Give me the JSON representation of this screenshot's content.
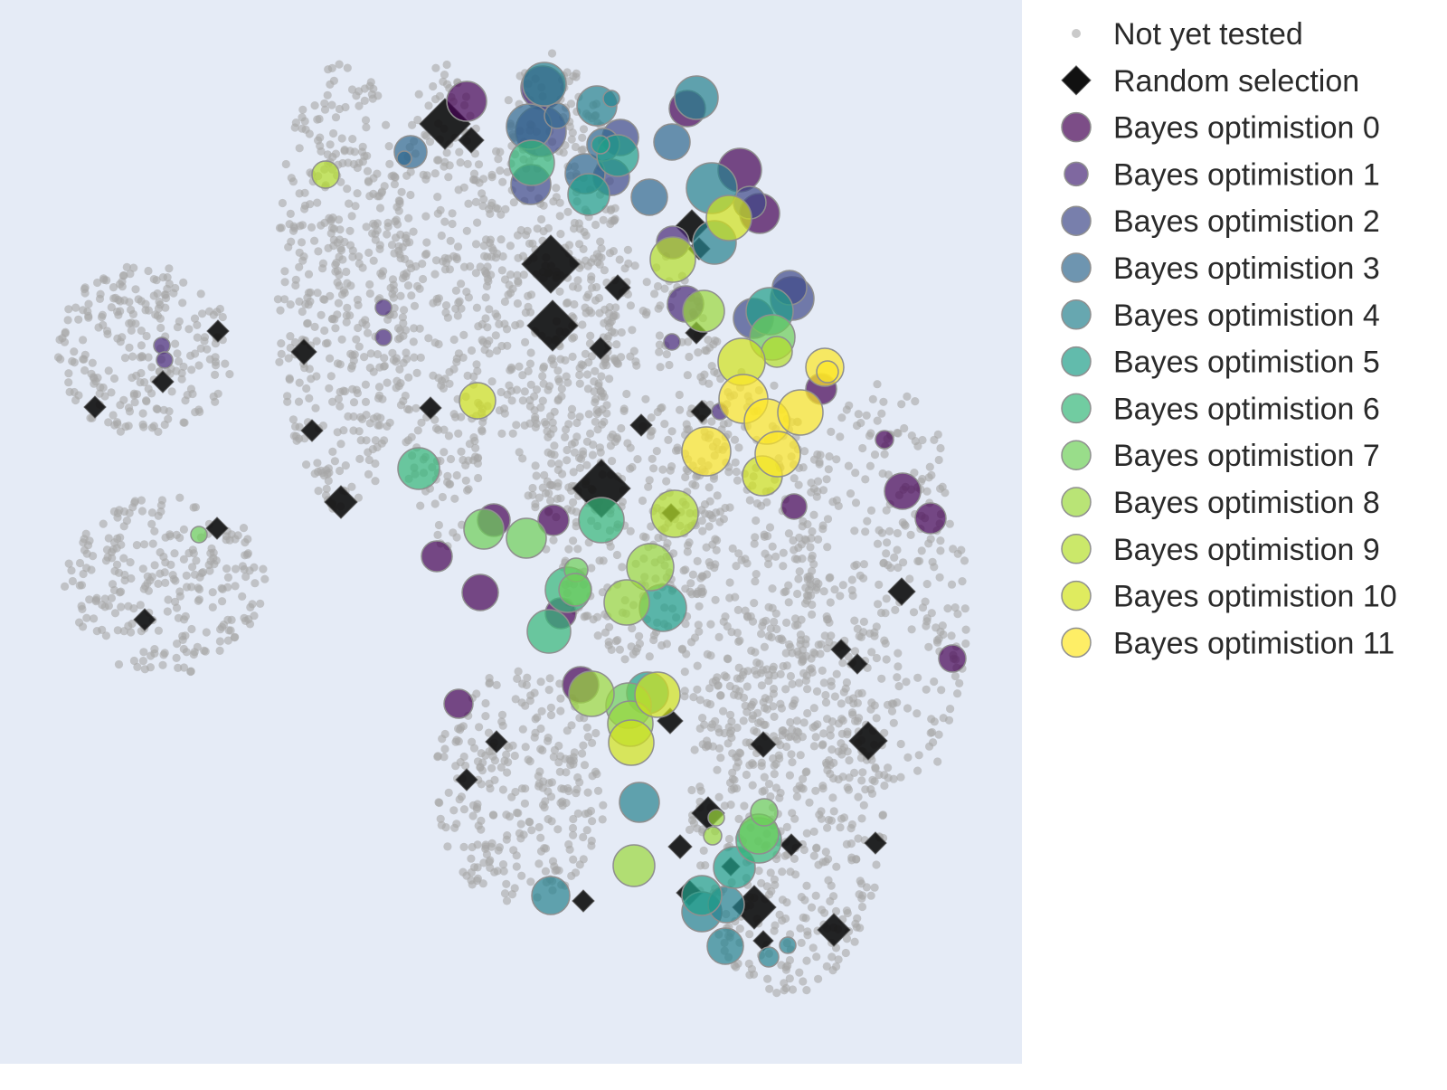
{
  "chart_data": {
    "type": "scatter",
    "title": "",
    "xlabel": "",
    "ylabel": "",
    "grid": false,
    "axes_visible": false,
    "plot_background": "#e5ebf6",
    "legend_position": "right",
    "xlim": [
      0,
      1130
    ],
    "ylim": [
      0,
      1176
    ],
    "y_inverted": true,
    "series": [
      {
        "name": "Not yet tested",
        "marker": "circle",
        "color": "#a6a6a6",
        "clusters": [
          {
            "center": [
              160,
              388
            ],
            "radius": [
              98,
              95
            ],
            "count": 230
          },
          {
            "center": [
              183,
              647
            ],
            "radius": [
              112,
              100
            ],
            "count": 250
          },
          {
            "center": [
              378,
              315
            ],
            "radius": [
              75,
              250
            ],
            "count": 420
          },
          {
            "center": [
              490,
              340
            ],
            "radius": [
              55,
              270
            ],
            "count": 280
          },
          {
            "center": [
              610,
              310
            ],
            "radius": [
              75,
              260
            ],
            "count": 380
          },
          {
            "center": [
              700,
              500
            ],
            "radius": [
              110,
              230
            ],
            "count": 420
          },
          {
            "center": [
              830,
              640
            ],
            "radius": [
              90,
              230
            ],
            "count": 300
          },
          {
            "center": [
              975,
              660
            ],
            "radius": [
              95,
              240
            ],
            "count": 320
          },
          {
            "center": [
              575,
              870
            ],
            "radius": [
              95,
              130
            ],
            "count": 280
          },
          {
            "center": [
              870,
              890
            ],
            "radius": [
              110,
              210
            ],
            "count": 420
          }
        ]
      },
      {
        "name": "Random selection",
        "marker": "diamond",
        "color": "#111111",
        "points": [
          [
            492,
            137,
            28
          ],
          [
            521,
            155,
            14
          ],
          [
            609,
            292,
            32
          ],
          [
            683,
            318,
            14
          ],
          [
            611,
            360,
            28
          ],
          [
            664,
            385,
            12
          ],
          [
            765,
            250,
            18
          ],
          [
            773,
            275,
            12
          ],
          [
            770,
            368,
            12
          ],
          [
            336,
            389,
            14
          ],
          [
            345,
            476,
            12
          ],
          [
            377,
            555,
            18
          ],
          [
            476,
            451,
            12
          ],
          [
            709,
            470,
            12
          ],
          [
            776,
            455,
            12
          ],
          [
            665,
            540,
            32
          ],
          [
            742,
            567,
            10
          ],
          [
            241,
            366,
            12
          ],
          [
            180,
            422,
            12
          ],
          [
            105,
            450,
            12
          ],
          [
            240,
            584,
            12
          ],
          [
            160,
            685,
            12
          ],
          [
            997,
            654,
            15
          ],
          [
            930,
            718,
            11
          ],
          [
            948,
            734,
            11
          ],
          [
            960,
            819,
            21
          ],
          [
            844,
            823,
            14
          ],
          [
            741,
            797,
            14
          ],
          [
            549,
            820,
            12
          ],
          [
            516,
            862,
            12
          ],
          [
            783,
            899,
            18
          ],
          [
            752,
            936,
            13
          ],
          [
            875,
            934,
            12
          ],
          [
            968,
            932,
            12
          ],
          [
            808,
            958,
            10
          ],
          [
            762,
            987,
            14
          ],
          [
            834,
            1003,
            24
          ],
          [
            844,
            1040,
            11
          ],
          [
            922,
            1028,
            18
          ],
          [
            645,
            996,
            12
          ]
        ]
      },
      {
        "name": "Bayes optimistion 0",
        "marker": "circle",
        "color": "#440154",
        "points": [
          [
            516,
            112,
            22
          ],
          [
            818,
            188,
            24
          ],
          [
            840,
            236,
            22
          ],
          [
            760,
            120,
            20
          ],
          [
            978,
            486,
            10
          ],
          [
            998,
            543,
            20
          ],
          [
            1029,
            573,
            17
          ],
          [
            1053,
            728,
            15
          ],
          [
            878,
            560,
            14
          ],
          [
            908,
            430,
            17
          ],
          [
            546,
            575,
            18
          ],
          [
            612,
            575,
            17
          ],
          [
            483,
            615,
            17
          ],
          [
            531,
            655,
            20
          ],
          [
            620,
            678,
            17
          ],
          [
            642,
            757,
            20
          ],
          [
            507,
            778,
            16
          ]
        ]
      },
      {
        "name": "Bayes optimistion 1",
        "marker": "circle",
        "color": "#482878",
        "points": [
          [
            179,
            382,
            9
          ],
          [
            182,
            398,
            9
          ],
          [
            424,
            340,
            9
          ],
          [
            424,
            373,
            9
          ],
          [
            743,
            378,
            9
          ],
          [
            796,
            455,
            9
          ],
          [
            758,
            336,
            20
          ],
          [
            744,
            268,
            18
          ],
          [
            600,
            97,
            24
          ]
        ]
      },
      {
        "name": "Bayes optimistion 2",
        "marker": "circle",
        "color": "#3e4989",
        "points": [
          [
            876,
            330,
            24
          ],
          [
            873,
            318,
            19
          ],
          [
            833,
            352,
            22
          ],
          [
            598,
            145,
            28
          ],
          [
            587,
            204,
            22
          ],
          [
            686,
            152,
            20
          ],
          [
            676,
            196,
            20
          ],
          [
            829,
            224,
            18
          ]
        ]
      },
      {
        "name": "Bayes optimistion 3",
        "marker": "circle",
        "color": "#31688e",
        "points": [
          [
            454,
            168,
            18
          ],
          [
            447,
            175,
            8
          ],
          [
            585,
            140,
            25
          ],
          [
            647,
            192,
            22
          ],
          [
            667,
            160,
            18
          ],
          [
            718,
            218,
            20
          ],
          [
            743,
            157,
            20
          ],
          [
            616,
            128,
            14
          ]
        ]
      },
      {
        "name": "Bayes optimistion 4",
        "marker": "circle",
        "color": "#26828e",
        "points": [
          [
            602,
            93,
            24
          ],
          [
            660,
            117,
            22
          ],
          [
            676,
            109,
            9
          ],
          [
            770,
            108,
            24
          ],
          [
            787,
            208,
            28
          ],
          [
            790,
            268,
            24
          ],
          [
            707,
            887,
            22
          ],
          [
            776,
            1008,
            22
          ],
          [
            803,
            1000,
            20
          ],
          [
            802,
            1046,
            20
          ],
          [
            850,
            1058,
            11
          ],
          [
            871,
            1045,
            9
          ],
          [
            609,
            990,
            21
          ]
        ]
      },
      {
        "name": "Bayes optimistion 5",
        "marker": "circle",
        "color": "#1f9e89",
        "points": [
          [
            683,
            172,
            23
          ],
          [
            664,
            160,
            10
          ],
          [
            851,
            344,
            26
          ],
          [
            733,
            672,
            26
          ],
          [
            812,
            959,
            23
          ],
          [
            776,
            990,
            22
          ],
          [
            716,
            766,
            23
          ],
          [
            651,
            215,
            23
          ]
        ]
      },
      {
        "name": "Bayes optimistion 6",
        "marker": "circle",
        "color": "#35b779",
        "points": [
          [
            588,
            180,
            25
          ],
          [
            463,
            518,
            23
          ],
          [
            665,
            575,
            25
          ],
          [
            628,
            652,
            25
          ],
          [
            607,
            698,
            24
          ],
          [
            839,
            929,
            25
          ]
        ]
      },
      {
        "name": "Bayes optimistion 7",
        "marker": "circle",
        "color": "#6ece58",
        "points": [
          [
            535,
            585,
            22
          ],
          [
            582,
            595,
            22
          ],
          [
            637,
            630,
            13
          ],
          [
            636,
            652,
            18
          ],
          [
            854,
            373,
            25
          ],
          [
            839,
            922,
            22
          ],
          [
            845,
            898,
            15
          ],
          [
            220,
            591,
            9
          ],
          [
            695,
            780,
            25
          ]
        ]
      },
      {
        "name": "Bayes optimistion 8",
        "marker": "circle",
        "color": "#9bd93c",
        "points": [
          [
            719,
            627,
            26
          ],
          [
            693,
            666,
            25
          ],
          [
            654,
            767,
            25
          ],
          [
            697,
            800,
            25
          ],
          [
            701,
            957,
            23
          ],
          [
            778,
            344,
            23
          ],
          [
            788,
            924,
            10
          ],
          [
            792,
            904,
            9
          ]
        ]
      },
      {
        "name": "Bayes optimistion 9",
        "marker": "circle",
        "color": "#b5de2b",
        "points": [
          [
            746,
            568,
            26
          ],
          [
            744,
            287,
            25
          ],
          [
            859,
            389,
            17
          ],
          [
            360,
            193,
            15
          ]
        ]
      },
      {
        "name": "Bayes optimistion 10",
        "marker": "circle",
        "color": "#d2e21b",
        "points": [
          [
            806,
            241,
            25
          ],
          [
            528,
            443,
            20
          ],
          [
            820,
            400,
            26
          ],
          [
            843,
            526,
            22
          ],
          [
            727,
            768,
            25
          ],
          [
            698,
            821,
            25
          ]
        ]
      },
      {
        "name": "Bayes optimistion 11",
        "marker": "circle",
        "color": "#fde725",
        "points": [
          [
            822,
            441,
            27
          ],
          [
            848,
            466,
            25
          ],
          [
            885,
            456,
            25
          ],
          [
            860,
            502,
            25
          ],
          [
            781,
            499,
            27
          ],
          [
            912,
            406,
            21
          ],
          [
            915,
            411,
            12
          ]
        ]
      }
    ]
  }
}
